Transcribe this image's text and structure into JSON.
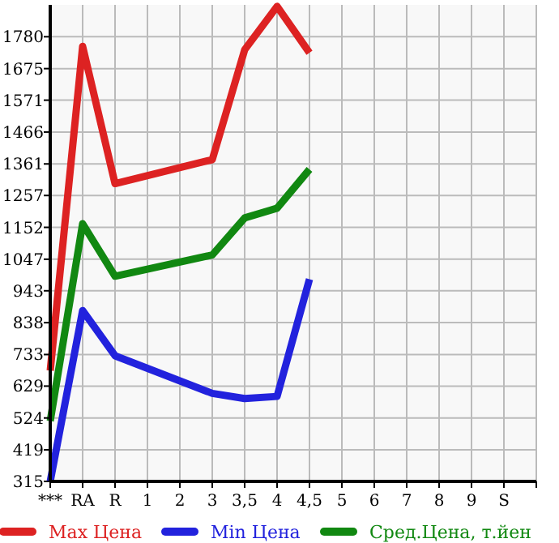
{
  "chart_data": {
    "type": "line",
    "categories": [
      "***",
      "RA",
      "R",
      "1",
      "2",
      "3",
      "3,5",
      "4",
      "4,5",
      "5",
      "6",
      "7",
      "8",
      "9",
      "S",
      null
    ],
    "series": [
      {
        "name": "Max Цена",
        "color": "#dd2222",
        "values": [
          680,
          1748,
          1296,
          null,
          null,
          1375,
          1737,
          1880,
          1727,
          null,
          null,
          null,
          null,
          null,
          null,
          null
        ]
      },
      {
        "name": "Min Цена",
        "color": "#2222dd",
        "values": [
          315,
          878,
          729,
          null,
          null,
          605,
          588,
          595,
          981,
          null,
          null,
          null,
          null,
          null,
          null,
          null
        ]
      },
      {
        "name": "Сред.Цена, т.йен",
        "color": "#118811",
        "values": [
          514,
          1164,
          991,
          null,
          null,
          1061,
          1183,
          1215,
          1343,
          null,
          null,
          null,
          null,
          null,
          null,
          null
        ]
      }
    ],
    "ylim": [
      315,
      1885
    ],
    "yticks": [
      315,
      419,
      524,
      629,
      733,
      838,
      943,
      1047,
      1152,
      1257,
      1361,
      1466,
      1571,
      1675,
      1780
    ],
    "grid": true,
    "legend": "bottom",
    "marker": "none",
    "line_style": "solid"
  }
}
